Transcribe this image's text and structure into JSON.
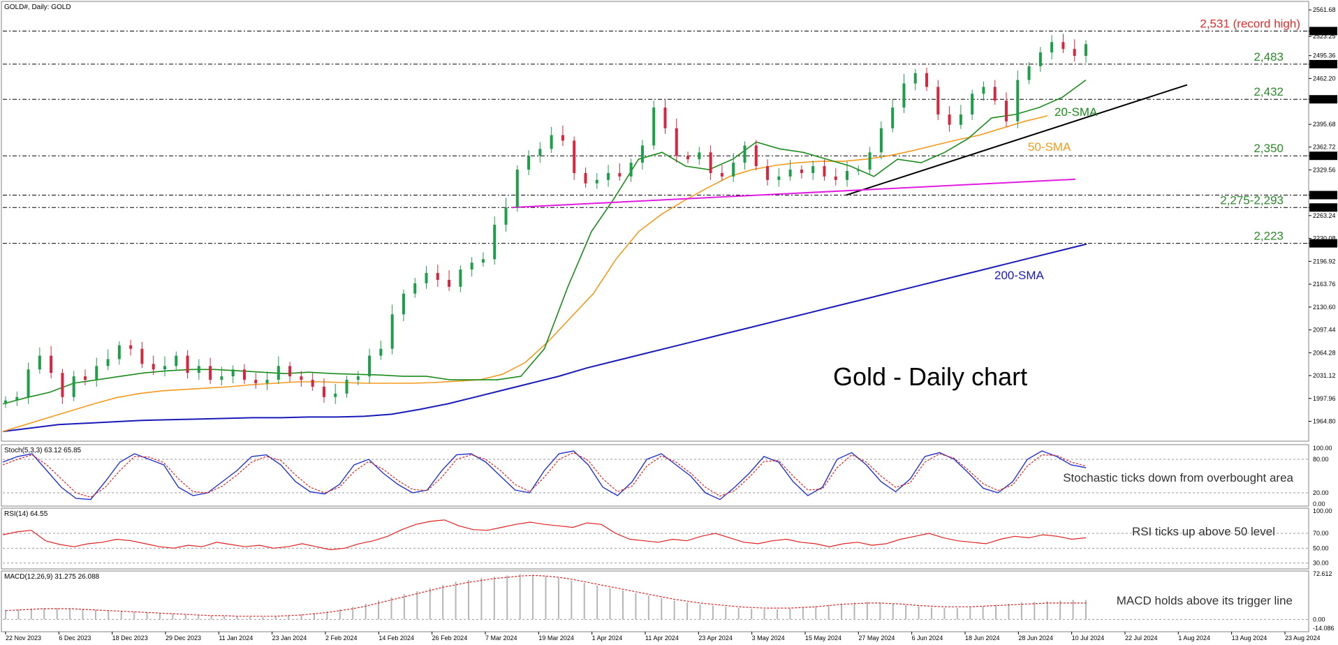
{
  "header": {
    "title": "GOLD#, Daily:  GOLD"
  },
  "colors": {
    "candle_up": "#1f9e4a",
    "candle_down": "#d7263d",
    "sma20": "#1a8c1a",
    "sma50": "#f39a1e",
    "sma200": "#1a1ab8",
    "trendline": "#000000",
    "support_magenta": "#e21be0",
    "level_red": "#e32b2b",
    "level_green": "#2b8a2b",
    "stoch_main": "#2233cc",
    "stoch_signal": "#e02020",
    "rsi_line": "#e02020",
    "macd_hist": "#b5b5b5",
    "macd_signal": "#e02020"
  },
  "chart_data": [
    {
      "type": "line",
      "name": "main",
      "title": "Gold - Daily chart",
      "ylim": [
        1940,
        2570
      ],
      "y_ticks": [
        "2561.68",
        "2531.00",
        "2523.25",
        "2495.36",
        "2483.00",
        "2462.20",
        "2432.00",
        "2395.68",
        "2362.72",
        "2350.00",
        "2329.56",
        "2293.00",
        "2275.00",
        "2263.24",
        "2230.08",
        "2223.00",
        "2196.92",
        "2163.76",
        "2130.60",
        "2097.44",
        "2064.28",
        "2031.12",
        "1997.96",
        "1964.80"
      ],
      "x_ticks": [
        "22 Nov 2023",
        "6 Dec 2023",
        "18 Dec 2023",
        "29 Dec 2023",
        "11 Jan 2024",
        "23 Jan 2024",
        "2 Feb 2024",
        "14 Feb 2024",
        "26 Feb 2024",
        "7 Mar 2024",
        "19 Mar 2024",
        "1 Apr 2024",
        "11 Apr 2024",
        "23 Apr 2024",
        "3 May 2024",
        "15 May 2024",
        "27 May 2024",
        "6 Jun 2024",
        "18 Jun 2024",
        "28 Jun 2024",
        "10 Jul 2024",
        "22 Jul 2024",
        "1 Aug 2024",
        "13 Aug 2024",
        "23 Aug 2024"
      ],
      "levels": [
        {
          "value": 2531,
          "label": "2,531 (record high)",
          "color": "red"
        },
        {
          "value": 2483,
          "label": "2,483",
          "color": "green"
        },
        {
          "value": 2432,
          "label": "2,432",
          "color": "green"
        },
        {
          "value": 2350,
          "label": "2,350",
          "color": "green"
        },
        {
          "value": 2293,
          "label": "",
          "color": "none"
        },
        {
          "value": 2275,
          "label": "2,275-2,293",
          "color": "green"
        },
        {
          "value": 2223,
          "label": "2,223",
          "color": "green"
        }
      ],
      "series": [
        {
          "name": "20-SMA",
          "values": [
            1990,
            1999,
            2007,
            2020,
            2025,
            2030,
            2035,
            2038,
            2040,
            2040,
            2038,
            2036,
            2034,
            2036,
            2034,
            2033,
            2032,
            2030,
            2030,
            2025,
            2025,
            2025,
            2030,
            2070,
            2160,
            2240,
            2290,
            2345,
            2355,
            2335,
            2330,
            2345,
            2370,
            2360,
            2355,
            2345,
            2335,
            2320,
            2345,
            2340,
            2355,
            2375,
            2405,
            2410,
            2420,
            2435,
            2460
          ]
        },
        {
          "name": "50-SMA",
          "values": [
            1950,
            1960,
            1970,
            1980,
            1990,
            1999,
            2005,
            2009,
            2011,
            2013,
            2015,
            2018,
            2020,
            2022,
            2022,
            2021,
            2020,
            2020,
            2020,
            2021,
            2023,
            2025,
            2033,
            2050,
            2080,
            2115,
            2150,
            2200,
            2240,
            2265,
            2285,
            2303,
            2320,
            2330,
            2336,
            2340,
            2342,
            2342,
            2345,
            2350,
            2357,
            2365,
            2373,
            2380,
            2390,
            2400,
            2408
          ]
        },
        {
          "name": "200-SMA",
          "values": [
            1950,
            1955,
            1960,
            1962,
            1964,
            1966,
            1967,
            1968,
            1969,
            1970,
            1970,
            1971,
            1971,
            1972,
            1975,
            1982,
            1990,
            2000,
            2010,
            2020,
            2030,
            2042,
            2052,
            2062,
            2072,
            2082,
            2092,
            2102,
            2112,
            2122,
            2132,
            2142,
            2152,
            2162,
            2172,
            2182,
            2192,
            2202,
            2212,
            2222
          ]
        },
        {
          "name": "Close",
          "values": [
            1995,
            2000,
            2040,
            2060,
            2035,
            2000,
            2030,
            2025,
            2045,
            2055,
            2075,
            2070,
            2048,
            2040,
            2045,
            2060,
            2035,
            2045,
            2025,
            2030,
            2040,
            2025,
            2020,
            2025,
            2045,
            2030,
            2025,
            2015,
            2000,
            2005,
            2025,
            2030,
            2060,
            2070,
            2120,
            2150,
            2165,
            2180,
            2170,
            2160,
            2185,
            2195,
            2200,
            2250,
            2275,
            2330,
            2350,
            2360,
            2380,
            2372,
            2325,
            2310,
            2315,
            2325,
            2320,
            2340,
            2365,
            2420,
            2390,
            2350,
            2345,
            2355,
            2325,
            2320,
            2340,
            2365,
            2335,
            2315,
            2320,
            2330,
            2325,
            2335,
            2320,
            2315,
            2328,
            2330,
            2355,
            2390,
            2420,
            2455,
            2470,
            2450,
            2410,
            2395,
            2410,
            2440,
            2450,
            2430,
            2400,
            2460,
            2480,
            2500,
            2515,
            2505,
            2495,
            2512
          ]
        }
      ]
    },
    {
      "type": "line",
      "name": "stochastic",
      "title": "Stoch(5,3,3) 63.12 65.85",
      "ylim": [
        0,
        100
      ],
      "y_ticks": [
        "100.00",
        "80.00",
        "20.00",
        "0.00"
      ],
      "annotation": "Stochastic ticks down from overbought area",
      "series": [
        {
          "name": "Stoch %K",
          "values": [
            75,
            85,
            90,
            60,
            30,
            10,
            8,
            40,
            75,
            90,
            80,
            70,
            30,
            15,
            20,
            40,
            60,
            85,
            88,
            70,
            40,
            22,
            18,
            35,
            70,
            80,
            55,
            35,
            20,
            25,
            60,
            88,
            90,
            75,
            50,
            25,
            20,
            60,
            90,
            95,
            70,
            30,
            15,
            40,
            80,
            90,
            70,
            50,
            20,
            8,
            30,
            55,
            85,
            75,
            40,
            15,
            30,
            80,
            92,
            70,
            40,
            22,
            45,
            85,
            92,
            80,
            55,
            28,
            20,
            40,
            80,
            95,
            85,
            70,
            65
          ]
        },
        {
          "name": "Stoch %D",
          "values": [
            70,
            80,
            88,
            70,
            45,
            20,
            12,
            30,
            60,
            85,
            84,
            74,
            45,
            22,
            20,
            32,
            52,
            75,
            85,
            78,
            52,
            30,
            20,
            30,
            58,
            76,
            62,
            42,
            26,
            24,
            48,
            80,
            88,
            80,
            60,
            35,
            22,
            48,
            80,
            92,
            78,
            45,
            22,
            32,
            68,
            86,
            75,
            55,
            30,
            14,
            24,
            48,
            76,
            78,
            50,
            25,
            27,
            65,
            88,
            75,
            50,
            30,
            38,
            75,
            90,
            82,
            60,
            36,
            24,
            34,
            68,
            88,
            87,
            75,
            68
          ]
        }
      ]
    },
    {
      "type": "line",
      "name": "rsi",
      "title": "RSI(14) 64.55",
      "ylim": [
        25,
        100
      ],
      "y_ticks": [
        "100.00",
        "70.00",
        "50.00",
        "30.00"
      ],
      "annotation": "RSI ticks up above 50 level",
      "series": [
        {
          "name": "RSI",
          "values": [
            68,
            72,
            74,
            60,
            55,
            52,
            56,
            58,
            62,
            60,
            56,
            52,
            50,
            54,
            52,
            58,
            55,
            52,
            54,
            50,
            52,
            56,
            52,
            48,
            50,
            56,
            60,
            66,
            75,
            82,
            86,
            88,
            80,
            75,
            74,
            78,
            82,
            85,
            82,
            80,
            78,
            84,
            82,
            70,
            62,
            60,
            58,
            62,
            60,
            66,
            70,
            64,
            58,
            56,
            60,
            62,
            58,
            56,
            52,
            56,
            58,
            54,
            56,
            62,
            66,
            70,
            64,
            60,
            58,
            56,
            62,
            66,
            64,
            68,
            66,
            62,
            64
          ]
        }
      ]
    },
    {
      "type": "bar",
      "name": "macd",
      "title": "MACD(12,26,9) 31.275 26.088",
      "ylim": [
        -14.086,
        72.612
      ],
      "y_ticks": [
        "72.612",
        "0.00",
        "-14.086"
      ],
      "annotation": "MACD holds above its trigger line",
      "series": [
        {
          "name": "MACD",
          "values": [
            15,
            16,
            17,
            18,
            18,
            17,
            16,
            15,
            14,
            13,
            12,
            11,
            10,
            9,
            8,
            7,
            6,
            5,
            5,
            4,
            4,
            5,
            6,
            8,
            10,
            13,
            16,
            20,
            25,
            30,
            35,
            40,
            45,
            50,
            55,
            60,
            63,
            66,
            68,
            70,
            72,
            71,
            69,
            66,
            62,
            58,
            54,
            50,
            46,
            42,
            38,
            34,
            30,
            27,
            24,
            22,
            20,
            18,
            17,
            16,
            16,
            17,
            19,
            21,
            23,
            25,
            27,
            28,
            27,
            25,
            23,
            21,
            19,
            18,
            18,
            19,
            21,
            23,
            25,
            27,
            28,
            29,
            30,
            31,
            31
          ]
        },
        {
          "name": "Signal",
          "values": [
            14,
            15,
            16,
            17,
            17,
            17,
            16,
            15,
            14,
            13,
            12,
            11,
            10,
            9,
            8,
            7,
            6,
            6,
            5,
            5,
            5,
            5,
            6,
            7,
            9,
            11,
            14,
            17,
            21,
            26,
            31,
            36,
            41,
            46,
            51,
            55,
            59,
            62,
            65,
            67,
            69,
            70,
            69,
            67,
            64,
            60,
            56,
            52,
            48,
            44,
            40,
            36,
            32,
            29,
            26,
            24,
            22,
            20,
            19,
            18,
            18,
            18,
            19,
            20,
            22,
            24,
            25,
            26,
            26,
            25,
            24,
            22,
            21,
            20,
            20,
            20,
            21,
            22,
            23,
            24,
            25,
            26,
            26,
            26,
            26
          ]
        }
      ]
    }
  ],
  "labels": {
    "sma20": "20-SMA",
    "sma50": "50-SMA",
    "sma200": "200-SMA"
  }
}
